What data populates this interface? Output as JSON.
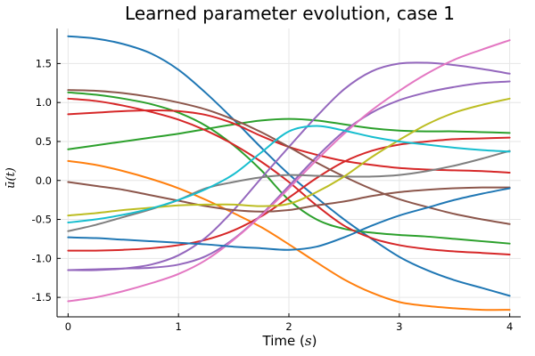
{
  "chart_data": {
    "type": "line",
    "title": "Learned parameter evolution, case 1",
    "xlabel_prefix": "Time (",
    "xlabel_unit": "s",
    "xlabel_suffix": ")",
    "ylabel": "ū(t)",
    "xlim": [
      -0.1,
      4.1
    ],
    "ylim": [
      -1.75,
      1.95
    ],
    "xticks": [
      0,
      1,
      2,
      3,
      4
    ],
    "xtick_labels": [
      "0",
      "1",
      "2",
      "3",
      "4"
    ],
    "yticks": [
      -1.5,
      -1.0,
      -0.5,
      0.0,
      0.5,
      1.0,
      1.5
    ],
    "ytick_labels": [
      "-1.5",
      "-1.0",
      "-0.5",
      "0.0",
      "0.5",
      "1.0",
      "1.5"
    ],
    "grid": true,
    "legend": "none",
    "x": [
      0,
      0.25,
      0.5,
      0.75,
      1.0,
      1.25,
      1.5,
      1.75,
      2.0,
      2.25,
      2.5,
      2.75,
      3.0,
      3.25,
      3.5,
      3.75,
      4.0
    ],
    "series": [
      {
        "color": "#1f77b4",
        "values": [
          1.85,
          1.82,
          1.75,
          1.63,
          1.42,
          1.12,
          0.78,
          0.42,
          0.08,
          -0.22,
          -0.5,
          -0.75,
          -0.98,
          -1.15,
          -1.28,
          -1.38,
          -1.48
        ]
      },
      {
        "color": "#ff7f0e",
        "values": [
          0.25,
          0.2,
          0.12,
          0.02,
          -0.1,
          -0.25,
          -0.42,
          -0.6,
          -0.82,
          -1.05,
          -1.27,
          -1.44,
          -1.56,
          -1.61,
          -1.64,
          -1.66,
          -1.66
        ]
      },
      {
        "color": "#2ca02c",
        "values": [
          1.13,
          1.1,
          1.05,
          0.98,
          0.87,
          0.7,
          0.45,
          0.13,
          -0.25,
          -0.5,
          -0.62,
          -0.67,
          -0.7,
          -0.72,
          -0.75,
          -0.78,
          -0.81
        ]
      },
      {
        "color": "#2ca02c",
        "values": [
          0.4,
          0.45,
          0.5,
          0.55,
          0.6,
          0.66,
          0.72,
          0.77,
          0.79,
          0.77,
          0.72,
          0.67,
          0.64,
          0.63,
          0.63,
          0.62,
          0.61
        ]
      },
      {
        "color": "#d62728",
        "values": [
          0.85,
          0.87,
          0.89,
          0.9,
          0.89,
          0.84,
          0.73,
          0.57,
          0.43,
          0.33,
          0.25,
          0.2,
          0.16,
          0.14,
          0.13,
          0.12,
          0.1
        ]
      },
      {
        "color": "#d62728",
        "values": [
          1.05,
          1.02,
          0.96,
          0.88,
          0.78,
          0.64,
          0.46,
          0.24,
          -0.02,
          -0.32,
          -0.58,
          -0.74,
          -0.83,
          -0.88,
          -0.91,
          -0.93,
          -0.95
        ]
      },
      {
        "color": "#d62728",
        "values": [
          -0.9,
          -0.9,
          -0.89,
          -0.87,
          -0.83,
          -0.76,
          -0.64,
          -0.46,
          -0.22,
          0.03,
          0.24,
          0.38,
          0.46,
          0.5,
          0.53,
          0.54,
          0.55
        ]
      },
      {
        "color": "#9467bd",
        "values": [
          -1.15,
          -1.15,
          -1.13,
          -1.08,
          -0.96,
          -0.73,
          -0.38,
          0.03,
          0.43,
          0.82,
          1.17,
          1.4,
          1.5,
          1.51,
          1.48,
          1.43,
          1.37
        ]
      },
      {
        "color": "#9467bd",
        "values": [
          -1.15,
          -1.14,
          -1.13,
          -1.12,
          -1.08,
          -0.97,
          -0.75,
          -0.44,
          -0.07,
          0.3,
          0.63,
          0.87,
          1.03,
          1.13,
          1.2,
          1.25,
          1.27
        ]
      },
      {
        "color": "#8c564b",
        "values": [
          1.16,
          1.15,
          1.12,
          1.07,
          1.0,
          0.91,
          0.78,
          0.62,
          0.43,
          0.23,
          0.05,
          -0.11,
          -0.24,
          -0.34,
          -0.43,
          -0.5,
          -0.56
        ]
      },
      {
        "color": "#8c564b",
        "values": [
          -0.02,
          -0.07,
          -0.12,
          -0.19,
          -0.26,
          -0.33,
          -0.38,
          -0.4,
          -0.38,
          -0.32,
          -0.27,
          -0.2,
          -0.15,
          -0.12,
          -0.1,
          -0.09,
          -0.09
        ]
      },
      {
        "color": "#e377c2",
        "values": [
          -1.55,
          -1.5,
          -1.42,
          -1.32,
          -1.2,
          -1.02,
          -0.76,
          -0.45,
          -0.1,
          0.26,
          0.6,
          0.9,
          1.15,
          1.37,
          1.55,
          1.68,
          1.8
        ]
      },
      {
        "color": "#7f7f7f",
        "values": [
          -0.65,
          -0.57,
          -0.47,
          -0.37,
          -0.25,
          -0.1,
          -0.02,
          0.04,
          0.07,
          0.06,
          0.05,
          0.05,
          0.07,
          0.12,
          0.19,
          0.28,
          0.38
        ]
      },
      {
        "color": "#bcbd22",
        "values": [
          -0.45,
          -0.42,
          -0.38,
          -0.35,
          -0.32,
          -0.31,
          -0.31,
          -0.33,
          -0.3,
          -0.15,
          0.05,
          0.3,
          0.52,
          0.72,
          0.87,
          0.97,
          1.05
        ]
      },
      {
        "color": "#17becf",
        "values": [
          -0.54,
          -0.5,
          -0.44,
          -0.36,
          -0.25,
          -0.11,
          0.08,
          0.36,
          0.63,
          0.7,
          0.64,
          0.56,
          0.5,
          0.46,
          0.42,
          0.39,
          0.37
        ]
      },
      {
        "color": "#1f77b4",
        "values": [
          -0.73,
          -0.74,
          -0.76,
          -0.78,
          -0.8,
          -0.82,
          -0.85,
          -0.87,
          -0.89,
          -0.85,
          -0.73,
          -0.58,
          -0.45,
          -0.35,
          -0.25,
          -0.17,
          -0.1
        ]
      }
    ]
  }
}
